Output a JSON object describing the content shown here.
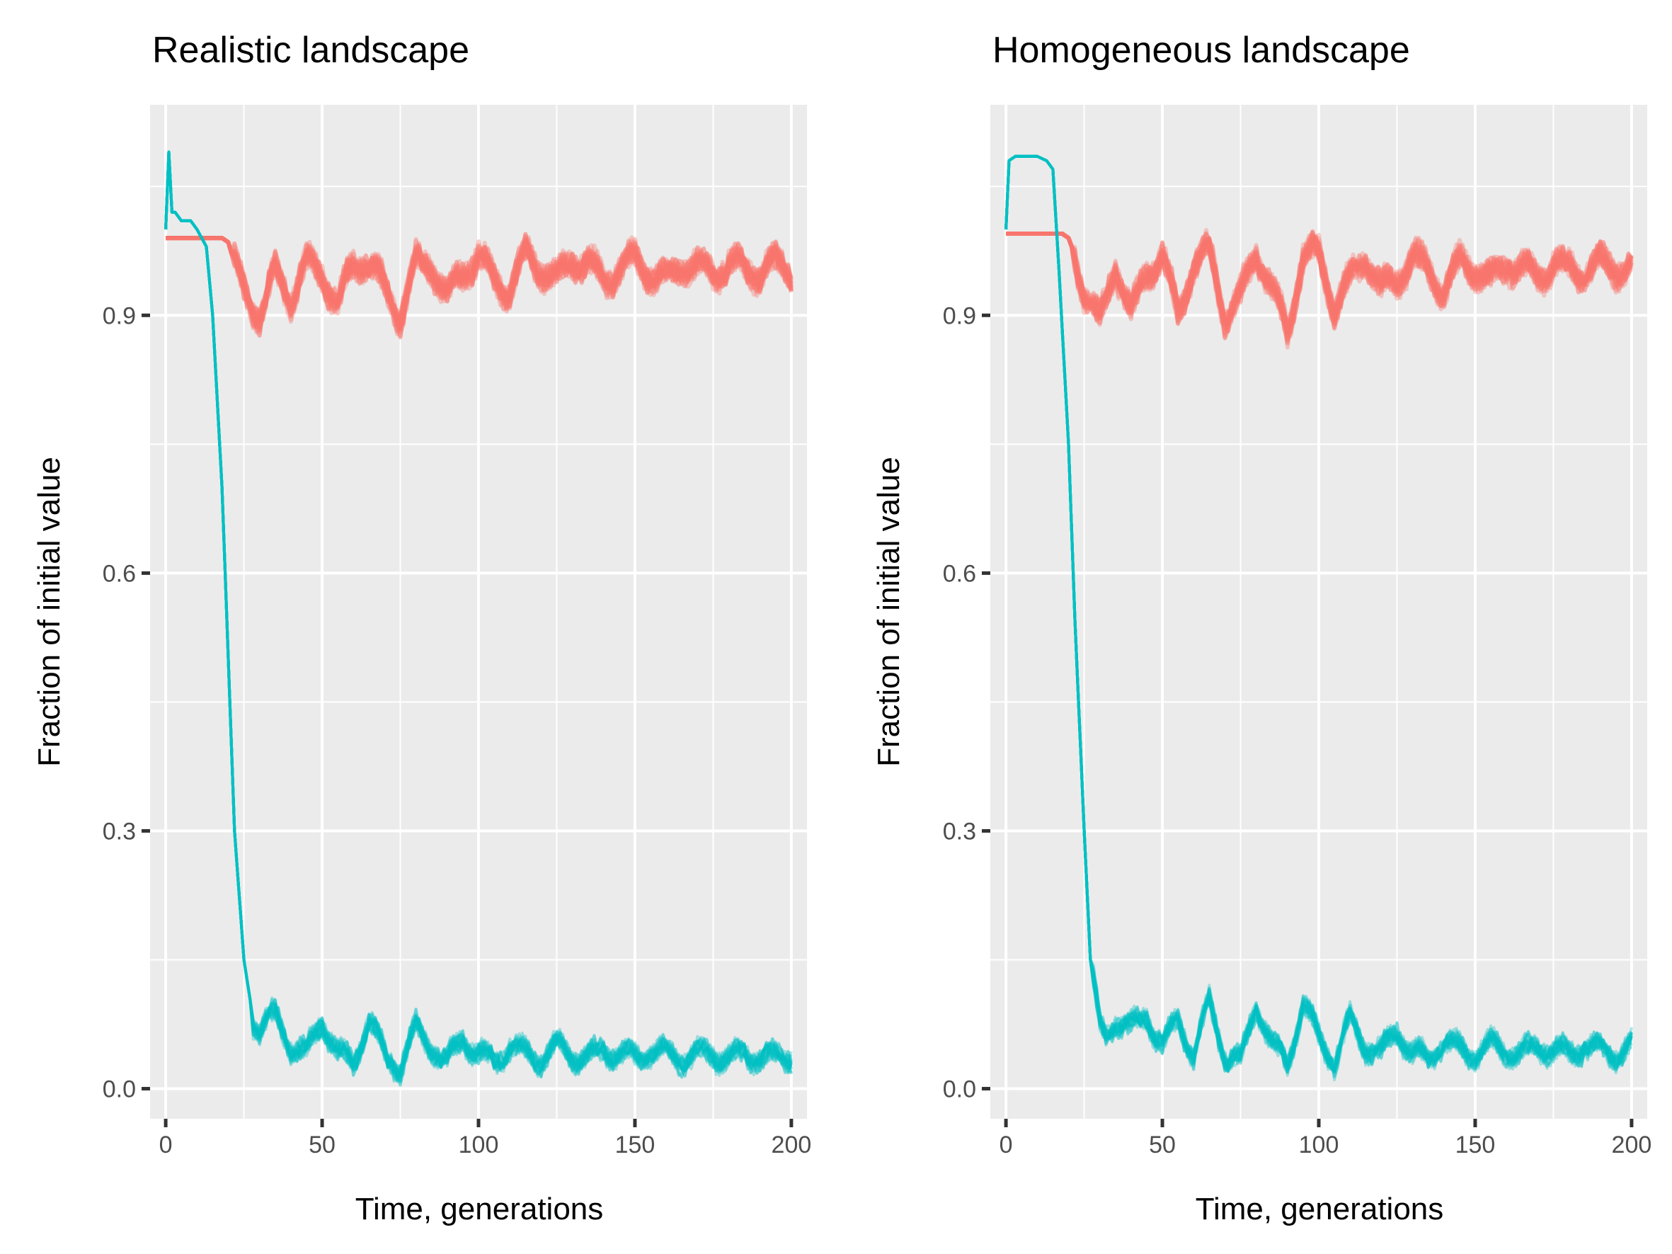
{
  "chart_data": [
    {
      "type": "line",
      "title": "Realistic landscape",
      "xlabel": "Time, generations",
      "ylabel": "Fraction of initial value",
      "xlim": [
        -5,
        205
      ],
      "ylim": [
        -0.035,
        1.145
      ],
      "x_ticks": [
        0,
        50,
        100,
        150,
        200
      ],
      "x_tick_labels": [
        "0",
        "50",
        "100",
        "150",
        "200"
      ],
      "y_ticks": [
        0.0,
        0.3,
        0.6,
        0.9
      ],
      "y_tick_labels": [
        "0.0",
        "0.3",
        "0.6",
        "0.9"
      ],
      "grid": true,
      "legend": "none",
      "series": [
        {
          "color": "#F8766D",
          "replicates": 20,
          "x": [
            0,
            5,
            10,
            15,
            18,
            20,
            22,
            25,
            30,
            35,
            40,
            45,
            50,
            55,
            60,
            65,
            70,
            75,
            80,
            85,
            90,
            95,
            100,
            105,
            110,
            115,
            120,
            125,
            130,
            135,
            140,
            145,
            150,
            155,
            160,
            165,
            170,
            175,
            180,
            185,
            190,
            195,
            200
          ],
          "values": [
            0.99,
            0.99,
            0.99,
            0.99,
            0.99,
            0.985,
            0.96,
            0.93,
            0.9,
            0.95,
            0.92,
            0.96,
            0.95,
            0.91,
            0.96,
            0.965,
            0.93,
            0.9,
            0.96,
            0.96,
            0.92,
            0.95,
            0.97,
            0.94,
            0.93,
            0.97,
            0.955,
            0.94,
            0.965,
            0.96,
            0.94,
            0.955,
            0.965,
            0.95,
            0.94,
            0.96,
            0.955,
            0.95,
            0.96,
            0.955,
            0.95,
            0.96,
            0.955
          ]
        },
        {
          "color": "#00BFC4",
          "replicates": 20,
          "x": [
            0,
            1,
            2,
            3,
            5,
            8,
            10,
            13,
            15,
            18,
            20,
            22,
            25,
            28,
            30,
            33,
            35,
            40,
            45,
            50,
            55,
            60,
            65,
            70,
            75,
            80,
            85,
            90,
            95,
            100,
            105,
            110,
            115,
            120,
            125,
            130,
            135,
            140,
            145,
            150,
            155,
            160,
            165,
            170,
            175,
            180,
            185,
            190,
            195,
            200
          ],
          "values": [
            1.0,
            1.09,
            1.02,
            1.02,
            1.01,
            1.01,
            1.0,
            0.98,
            0.9,
            0.7,
            0.5,
            0.3,
            0.15,
            0.08,
            0.07,
            0.08,
            0.085,
            0.05,
            0.04,
            0.08,
            0.04,
            0.03,
            0.08,
            0.04,
            0.025,
            0.07,
            0.05,
            0.03,
            0.06,
            0.04,
            0.03,
            0.05,
            0.04,
            0.035,
            0.05,
            0.04,
            0.035,
            0.045,
            0.04,
            0.035,
            0.045,
            0.04,
            0.035,
            0.04,
            0.04,
            0.035,
            0.04,
            0.038,
            0.035,
            0.04
          ]
        }
      ]
    },
    {
      "type": "line",
      "title": "Homogeneous landscape",
      "xlabel": "Time, generations",
      "ylabel": "Fraction of initial value",
      "xlim": [
        -5,
        205
      ],
      "ylim": [
        -0.035,
        1.145
      ],
      "x_ticks": [
        0,
        50,
        100,
        150,
        200
      ],
      "x_tick_labels": [
        "0",
        "50",
        "100",
        "150",
        "200"
      ],
      "y_ticks": [
        0.0,
        0.3,
        0.6,
        0.9
      ],
      "y_tick_labels": [
        "0.0",
        "0.3",
        "0.6",
        "0.9"
      ],
      "grid": true,
      "legend": "none",
      "series": [
        {
          "color": "#F8766D",
          "replicates": 20,
          "x": [
            0,
            5,
            10,
            15,
            18,
            20,
            22,
            25,
            30,
            35,
            40,
            45,
            50,
            55,
            60,
            65,
            70,
            75,
            80,
            85,
            90,
            95,
            100,
            105,
            110,
            115,
            120,
            125,
            130,
            135,
            140,
            145,
            150,
            155,
            160,
            165,
            170,
            175,
            180,
            185,
            190,
            195,
            200
          ],
          "values": [
            0.995,
            0.995,
            0.995,
            0.995,
            0.995,
            0.99,
            0.97,
            0.93,
            0.89,
            0.96,
            0.9,
            0.95,
            0.97,
            0.9,
            0.96,
            0.975,
            0.9,
            0.92,
            0.975,
            0.93,
            0.88,
            0.97,
            0.97,
            0.91,
            0.94,
            0.97,
            0.93,
            0.94,
            0.97,
            0.95,
            0.93,
            0.96,
            0.955,
            0.94,
            0.96,
            0.955,
            0.945,
            0.96,
            0.955,
            0.95,
            0.96,
            0.955,
            0.955
          ]
        },
        {
          "color": "#00BFC4",
          "replicates": 20,
          "x": [
            0,
            1,
            3,
            5,
            10,
            13,
            15,
            17,
            20,
            22,
            25,
            27,
            30,
            32,
            35,
            40,
            45,
            50,
            55,
            60,
            65,
            70,
            75,
            80,
            85,
            90,
            95,
            100,
            105,
            110,
            115,
            120,
            125,
            130,
            135,
            140,
            145,
            150,
            155,
            160,
            165,
            170,
            175,
            180,
            185,
            190,
            195,
            200
          ],
          "values": [
            1.0,
            1.08,
            1.085,
            1.085,
            1.085,
            1.08,
            1.07,
            0.95,
            0.75,
            0.55,
            0.3,
            0.15,
            0.07,
            0.06,
            0.08,
            0.07,
            0.085,
            0.05,
            0.08,
            0.04,
            0.1,
            0.04,
            0.03,
            0.1,
            0.05,
            0.03,
            0.1,
            0.06,
            0.03,
            0.08,
            0.05,
            0.04,
            0.07,
            0.04,
            0.035,
            0.055,
            0.045,
            0.04,
            0.05,
            0.045,
            0.04,
            0.05,
            0.045,
            0.04,
            0.05,
            0.045,
            0.04,
            0.05
          ]
        }
      ]
    }
  ]
}
